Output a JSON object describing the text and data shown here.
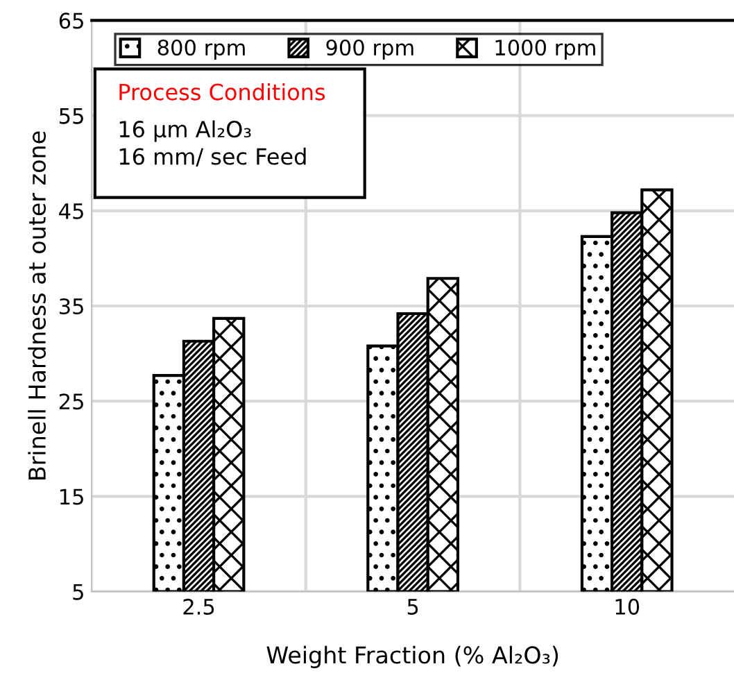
{
  "chart_data": {
    "type": "bar",
    "xlabel": "Weight Fraction (% Al₂O₃)",
    "ylabel": "Brinell Hardness at outer zone",
    "categories": [
      "2.5",
      "5",
      "10"
    ],
    "series": [
      {
        "name": "800 rpm",
        "color": "#000000",
        "values": [
          27.7,
          30.8,
          42.3
        ]
      },
      {
        "name": "900 rpm",
        "color": "#000000",
        "values": [
          31.3,
          34.2,
          44.8
        ]
      },
      {
        "name": "1000 rpm",
        "color": "#000000",
        "values": [
          33.7,
          37.9,
          47.2
        ]
      }
    ],
    "ylim": [
      5,
      65
    ],
    "yticks": [
      5,
      15,
      25,
      35,
      45,
      55,
      65
    ],
    "grid": true,
    "legend": "top",
    "annotations": [
      "Process Conditions",
      "16 µm Al₂O₃",
      "16 mm/ sec Feed"
    ]
  }
}
